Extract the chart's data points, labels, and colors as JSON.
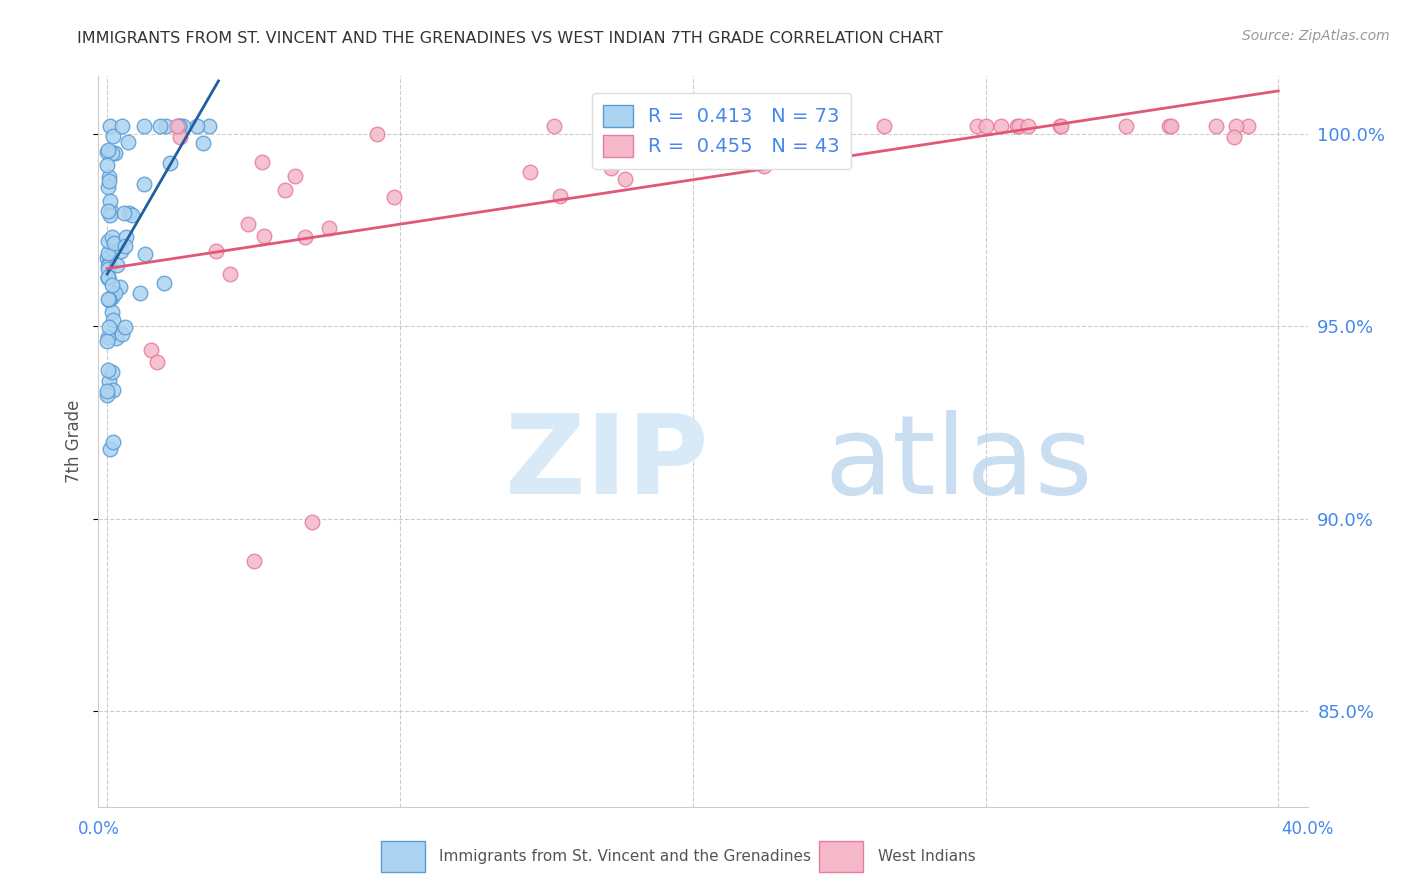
{
  "title": "IMMIGRANTS FROM ST. VINCENT AND THE GRENADINES VS WEST INDIAN 7TH GRADE CORRELATION CHART",
  "source": "Source: ZipAtlas.com",
  "ylabel": "7th Grade",
  "y_tick_vals": [
    0.85,
    0.9,
    0.95,
    1.0
  ],
  "y_tick_labels": [
    "85.0%",
    "90.0%",
    "95.0%",
    "100.0%"
  ],
  "x_tick_vals": [
    0.0,
    0.1,
    0.2,
    0.3,
    0.4
  ],
  "x_lim": [
    -0.003,
    0.41
  ],
  "y_lim": [
    0.825,
    1.015
  ],
  "legend_blue_r": "0.413",
  "legend_blue_n": "73",
  "legend_pink_r": "0.455",
  "legend_pink_n": "43",
  "blue_fill": "#acd3f0",
  "blue_edge": "#5b9bd5",
  "pink_fill": "#f4b8c8",
  "pink_edge": "#e87ba0",
  "blue_line_color": "#2060a0",
  "pink_line_color": "#e05878",
  "tick_label_color": "#4488ee",
  "grid_color": "#cccccc",
  "title_color": "#333333",
  "source_color": "#999999",
  "legend_label_color": "#333333",
  "legend_r_color": "#4488ee",
  "bottom_label_color": "#555555"
}
